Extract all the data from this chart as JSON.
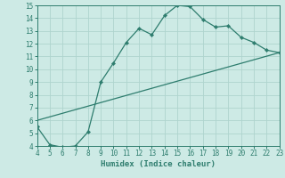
{
  "xlabel": "Humidex (Indice chaleur)",
  "curve1_x": [
    4,
    5,
    6,
    7,
    8,
    9,
    10,
    11,
    12,
    13,
    14,
    15,
    16,
    17,
    18,
    19,
    20,
    21,
    22,
    23
  ],
  "curve1_y": [
    5.5,
    4.1,
    3.9,
    4.0,
    5.1,
    9.0,
    10.5,
    12.1,
    13.2,
    12.7,
    14.2,
    15.0,
    14.9,
    13.9,
    13.3,
    13.4,
    12.5,
    12.1,
    11.5,
    11.3
  ],
  "curve2_x": [
    4,
    23
  ],
  "curve2_y": [
    6.0,
    11.3
  ],
  "line_color": "#2e7d6e",
  "bg_color": "#cdeae5",
  "grid_color_major": "#afd4ce",
  "grid_color_minor": "#c5e3de",
  "xlim": [
    4,
    23
  ],
  "ylim": [
    4,
    15
  ],
  "xticks": [
    4,
    5,
    6,
    7,
    8,
    9,
    10,
    11,
    12,
    13,
    14,
    15,
    16,
    17,
    18,
    19,
    20,
    21,
    22,
    23
  ],
  "yticks": [
    4,
    5,
    6,
    7,
    8,
    9,
    10,
    11,
    12,
    13,
    14,
    15
  ],
  "tick_fontsize": 5.5,
  "xlabel_fontsize": 6.5
}
